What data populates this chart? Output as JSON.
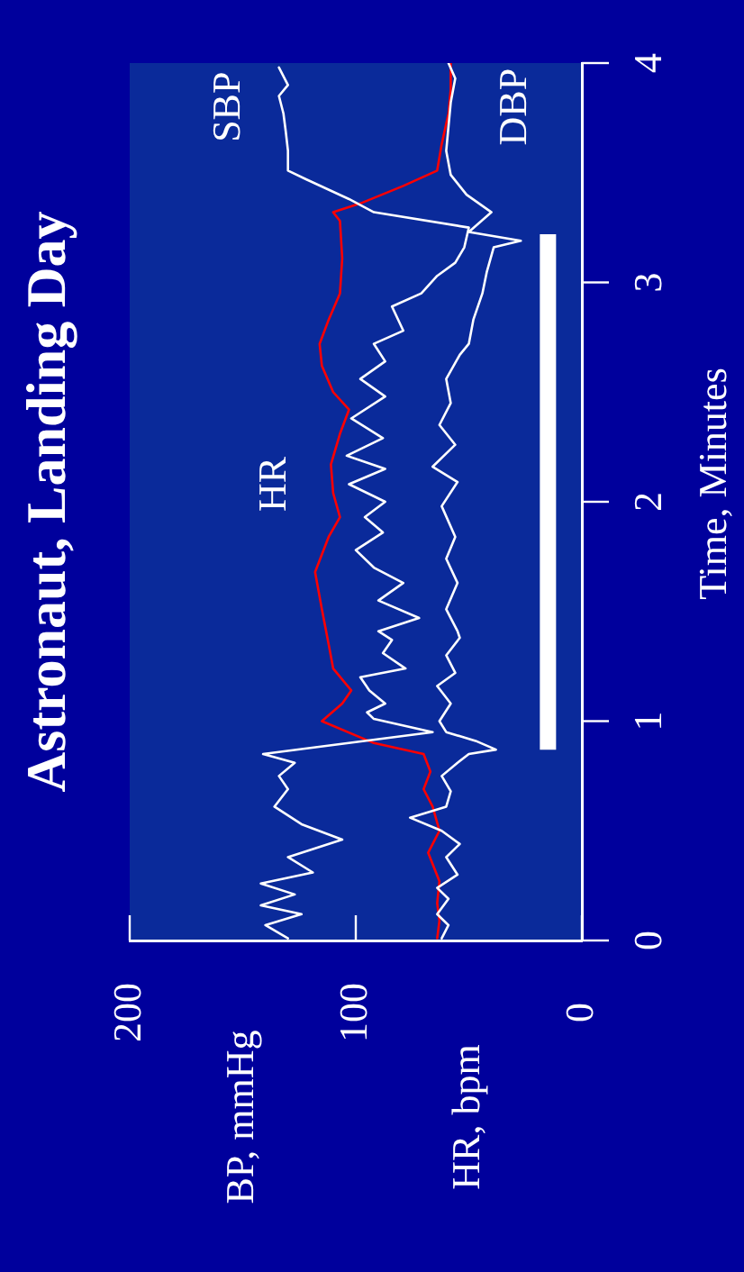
{
  "chart_data": {
    "type": "line",
    "title": "Astronaut, Landing Day",
    "xlabel": "BP, mmHg\nHR, bpm",
    "ylabel": "Time, Minutes",
    "xlim": [
      200,
      0
    ],
    "xticks": [
      200,
      100,
      0
    ],
    "ylim": [
      0,
      4
    ],
    "yticks": [
      0,
      1,
      2,
      3,
      4
    ],
    "grid": false,
    "legend": false,
    "marker": "none",
    "line_style": "solid",
    "series": [
      {
        "name": "SBP",
        "color": "#ffffff",
        "values": [
          0.01,
          0.07,
          0.12,
          0.16,
          0.21,
          0.26,
          0.31,
          0.38,
          0.46,
          0.53,
          0.61,
          0.69,
          0.75,
          0.81,
          0.85,
          0.95,
          1.01,
          1.04,
          1.08,
          1.14,
          1.2,
          1.24,
          1.31,
          1.37,
          1.41,
          1.47,
          1.55,
          1.63,
          1.7,
          1.78,
          1.86,
          1.93,
          2.0,
          2.08,
          2.15,
          2.21,
          2.29,
          2.38,
          2.48,
          2.56,
          2.64,
          2.72,
          2.78,
          2.89,
          2.95,
          3.03,
          3.09,
          3.16,
          3.25,
          3.32,
          3.38,
          3.47,
          3.51,
          3.6,
          3.69,
          3.77,
          3.85,
          3.9,
          3.98
        ],
        "x": [
          130,
          140,
          124,
          142,
          127,
          142,
          119,
          130,
          106,
          124,
          136,
          130,
          134,
          127,
          141,
          66,
          92,
          95,
          87,
          94,
          98,
          78,
          88,
          84,
          90,
          72,
          90,
          79,
          92,
          100,
          88,
          96,
          87,
          103,
          87,
          104,
          88,
          102,
          87,
          98,
          87,
          92,
          79,
          84,
          71,
          64,
          56,
          52,
          50,
          92,
          103,
          122,
          130,
          130,
          131,
          132,
          134,
          130,
          134
        ]
      },
      {
        "name": "DBP",
        "color": "#ffffff",
        "values": [
          0.01,
          0.07,
          0.12,
          0.19,
          0.24,
          0.3,
          0.38,
          0.44,
          0.5,
          0.56,
          0.61,
          0.68,
          0.75,
          0.81,
          0.85,
          0.87,
          0.91,
          0.95,
          1.0,
          1.08,
          1.16,
          1.22,
          1.3,
          1.38,
          1.41,
          1.51,
          1.63,
          1.74,
          1.84,
          1.98,
          2.09,
          2.16,
          2.26,
          2.35,
          2.45,
          2.56,
          2.67,
          2.72,
          2.83,
          2.95,
          3.05,
          3.16,
          3.19,
          3.23,
          3.32,
          3.4,
          3.49,
          3.6,
          3.71,
          3.82,
          3.93,
          4.0
        ],
        "x": [
          62,
          59,
          64,
          59,
          64,
          55,
          60,
          54,
          62,
          76,
          60,
          58,
          62,
          55,
          50,
          38,
          47,
          60,
          63,
          58,
          64,
          56,
          60,
          54,
          55,
          60,
          55,
          60,
          56,
          62,
          55,
          66,
          56,
          63,
          58,
          60,
          54,
          50,
          48,
          44,
          42,
          39,
          27,
          50,
          40,
          51,
          58,
          60,
          59,
          58,
          56,
          59
        ]
      },
      {
        "name": "HR",
        "color": "#ff0000",
        "values": [
          0.01,
          0.09,
          0.17,
          0.27,
          0.4,
          0.5,
          0.61,
          0.69,
          0.77,
          0.85,
          0.9,
          1.0,
          1.08,
          1.14,
          1.24,
          1.35,
          1.51,
          1.68,
          1.84,
          1.93,
          2.04,
          2.17,
          2.31,
          2.42,
          2.5,
          2.62,
          2.72,
          2.83,
          2.95,
          3.11,
          3.28,
          3.32,
          3.36,
          3.44,
          3.51,
          3.63,
          3.77,
          3.88,
          4.0
        ],
        "x": [
          64,
          63,
          64,
          63,
          68,
          63,
          66,
          70,
          67,
          70,
          92,
          115,
          106,
          102,
          110,
          112,
          115,
          118,
          112,
          107,
          110,
          111,
          107,
          103,
          110,
          115,
          116,
          112,
          107,
          106,
          107,
          110,
          98,
          79,
          64,
          62,
          59,
          58,
          58
        ]
      },
      {
        "color": "#ffffff",
        "values": [
          0.87,
          3.22
        ],
        "x": [
          15,
          15
        ]
      }
    ]
  }
}
